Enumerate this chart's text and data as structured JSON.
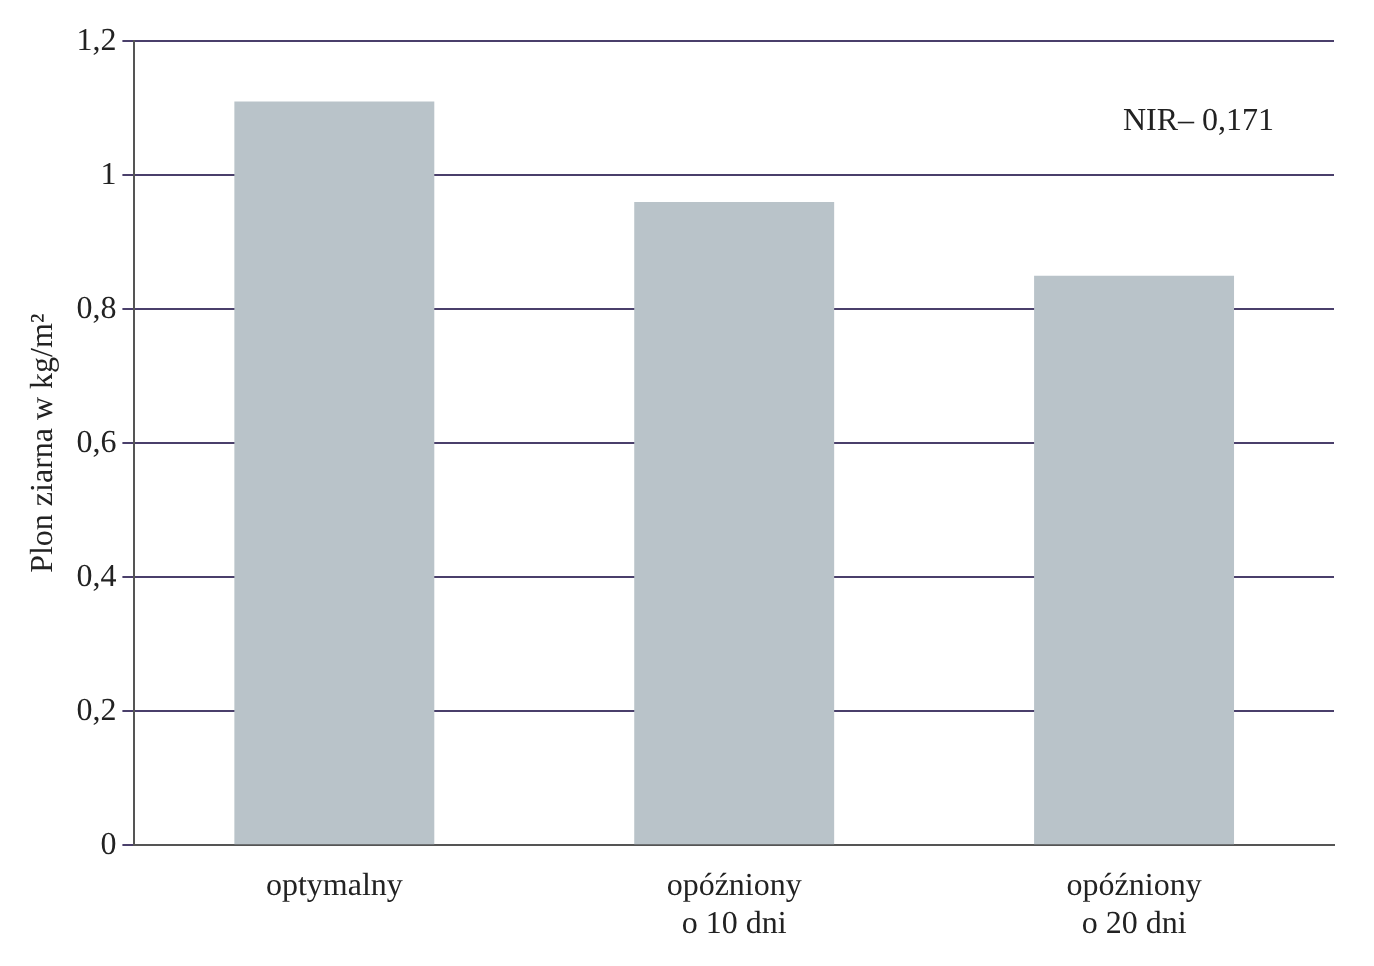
{
  "chart_data": {
    "type": "bar",
    "ylabel": "Plon ziarna w kg/m²",
    "categories": [
      "optymalny",
      "opóźniony\no 10 dni",
      "opóźniony\no 20 dni"
    ],
    "values": [
      1.11,
      0.96,
      0.85
    ],
    "color": "#b9c3c9",
    "ylim": [
      0,
      1.2
    ],
    "yticks": [
      0,
      {
        "value": 0.2,
        "label": "0,2"
      },
      {
        "value": 0.4,
        "label": "0,4"
      },
      {
        "value": 0.6,
        "label": "0,6"
      },
      {
        "value": 0.8,
        "label": "0,8"
      },
      1,
      {
        "value": 1.2,
        "label": "1,2"
      }
    ],
    "grid": "y",
    "legend": false,
    "annotations": [
      "NIR– 0,171"
    ]
  }
}
